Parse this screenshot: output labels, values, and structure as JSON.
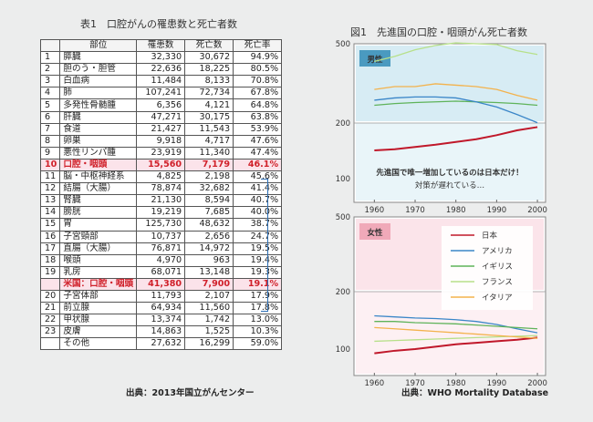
{
  "table": {
    "title": "表1　口腔がんの罹患数と死亡者数",
    "headers": [
      "部位",
      "罹患数",
      "死亡数",
      "死亡率"
    ],
    "rows": [
      {
        "no": "1",
        "site": "膵臓",
        "inc": "32,330",
        "death": "30,672",
        "rate": "94.9%"
      },
      {
        "no": "2",
        "site": "胆のう・胆管",
        "inc": "22,636",
        "death": "18,225",
        "rate": "80.5%"
      },
      {
        "no": "3",
        "site": "白血病",
        "inc": "11,484",
        "death": "8,133",
        "rate": "70.8%"
      },
      {
        "no": "4",
        "site": "肺",
        "inc": "107,241",
        "death": "72,734",
        "rate": "67.8%"
      },
      {
        "no": "5",
        "site": "多発性骨髄腫",
        "inc": "6,356",
        "death": "4,121",
        "rate": "64.8%"
      },
      {
        "no": "6",
        "site": "肝臓",
        "inc": "47,271",
        "death": "30,175",
        "rate": "63.8%"
      },
      {
        "no": "7",
        "site": "食道",
        "inc": "21,427",
        "death": "11,543",
        "rate": "53.9%"
      },
      {
        "no": "8",
        "site": "卵巣",
        "inc": "9,918",
        "death": "4,717",
        "rate": "47.6%"
      },
      {
        "no": "9",
        "site": "悪性リンパ腫",
        "inc": "23,919",
        "death": "11,340",
        "rate": "47.4%"
      },
      {
        "no": "10",
        "site": "口腔・咽頭",
        "inc": "15,560",
        "death": "7,179",
        "rate": "46.1%",
        "hl": true
      },
      {
        "no": "11",
        "site": "脳・中枢神経系",
        "inc": "4,825",
        "death": "2,198",
        "rate": "45.6%"
      },
      {
        "no": "12",
        "site": "結腸（大腸）",
        "inc": "78,874",
        "death": "32,682",
        "rate": "41.4%"
      },
      {
        "no": "13",
        "site": "腎臓",
        "inc": "21,130",
        "death": "8,594",
        "rate": "40.7%"
      },
      {
        "no": "14",
        "site": "膀胱",
        "inc": "19,219",
        "death": "7,685",
        "rate": "40.0%"
      },
      {
        "no": "15",
        "site": "胃",
        "inc": "125,730",
        "death": "48,632",
        "rate": "38.7%"
      },
      {
        "no": "16",
        "site": "子宮頸部",
        "inc": "10,737",
        "death": "2,656",
        "rate": "24.7%"
      },
      {
        "no": "17",
        "site": "直腸（大腸）",
        "inc": "76,871",
        "death": "14,972",
        "rate": "19.5%"
      },
      {
        "no": "18",
        "site": "喉頭",
        "inc": "4,970",
        "death": "963",
        "rate": "19.4%"
      },
      {
        "no": "19",
        "site": "乳房",
        "inc": "68,071",
        "death": "13,148",
        "rate": "19.3%"
      },
      {
        "no": "",
        "site": "米国：口腔・咽頭",
        "inc": "41,380",
        "death": "7,900",
        "rate": "19.1%",
        "hl": true,
        "us": true
      },
      {
        "no": "20",
        "site": "子宮体部",
        "inc": "11,793",
        "death": "2,107",
        "rate": "17.9%"
      },
      {
        "no": "21",
        "site": "前立腺",
        "inc": "64,934",
        "death": "11,560",
        "rate": "17.8%"
      },
      {
        "no": "22",
        "site": "甲状腺",
        "inc": "13,374",
        "death": "1,742",
        "rate": "13.0%"
      },
      {
        "no": "23",
        "site": "皮膚",
        "inc": "14,863",
        "death": "1,525",
        "rate": "10.3%"
      },
      {
        "no": "",
        "site": "その他",
        "inc": "27,632",
        "death": "16,299",
        "rate": "59.0%"
      }
    ],
    "source": "出典：2013年国立がんセンター"
  },
  "figure": {
    "title": "図1　先進国の口腔・咽頭がん死亡者数",
    "source": "出典：WHO Mortality Database"
  },
  "colors": {
    "japan": "#c0182a",
    "usa": "#3a86c8",
    "uk": "#5fb35a",
    "france": "#b7e08a",
    "italy": "#f3b24c",
    "male_panel_bg": "#d7ecf4",
    "female_panel_bg": "#fbe4ea",
    "arrow": "#2d6fb5"
  },
  "chart_data": [
    {
      "type": "line",
      "panel_label": "男性",
      "annotation_1": "先進国で唯一増加しているのは日本だけ！",
      "annotation_2": "対策が遅れている…",
      "x": [
        1960,
        1965,
        1970,
        1975,
        1980,
        1985,
        1990,
        1995,
        2000
      ],
      "y_ticks": [
        100,
        200,
        500
      ],
      "x_ticks": [
        1960,
        1970,
        1980,
        1990,
        2000
      ],
      "series": [
        {
          "name": "フランス",
          "color": "#b7e08a",
          "values": [
            405,
            430,
            465,
            490,
            505,
            500,
            495,
            460,
            440
          ]
        },
        {
          "name": "イタリア",
          "color": "#f3b24c",
          "values": [
            290,
            300,
            300,
            310,
            305,
            300,
            290,
            270,
            255
          ]
        },
        {
          "name": "イギリス",
          "color": "#5fb35a",
          "values": [
            240,
            245,
            248,
            250,
            252,
            250,
            248,
            245,
            240
          ]
        },
        {
          "name": "アメリカ",
          "color": "#3a86c8",
          "values": [
            255,
            262,
            265,
            265,
            262,
            250,
            235,
            215,
            195
          ]
        },
        {
          "name": "日本",
          "color": "#c0182a",
          "values": [
            140,
            142,
            146,
            150,
            155,
            160,
            168,
            178,
            185
          ]
        }
      ]
    },
    {
      "type": "line",
      "panel_label": "女性",
      "x": [
        1960,
        1965,
        1970,
        1975,
        1980,
        1985,
        1990,
        1995,
        2000
      ],
      "y_ticks": [
        100,
        200,
        500
      ],
      "x_ticks": [
        1960,
        1970,
        1980,
        1990,
        2000
      ],
      "legend": [
        "日本",
        "アメリカ",
        "イギリス",
        "フランス",
        "イタリア"
      ],
      "series": [
        {
          "name": "日本",
          "color": "#c0182a",
          "values": [
            95,
            98,
            100,
            103,
            106,
            108,
            110,
            112,
            115
          ]
        },
        {
          "name": "アメリカ",
          "color": "#3a86c8",
          "values": [
            150,
            148,
            146,
            145,
            143,
            140,
            135,
            128,
            122
          ]
        },
        {
          "name": "イギリス",
          "color": "#5fb35a",
          "values": [
            140,
            140,
            138,
            137,
            136,
            134,
            132,
            130,
            128
          ]
        },
        {
          "name": "フランス",
          "color": "#b7e08a",
          "values": [
            110,
            111,
            112,
            113,
            114,
            115,
            116,
            117,
            118
          ]
        },
        {
          "name": "イタリア",
          "color": "#f3b24c",
          "values": [
            130,
            128,
            126,
            124,
            122,
            120,
            118,
            116,
            114
          ]
        }
      ]
    }
  ]
}
